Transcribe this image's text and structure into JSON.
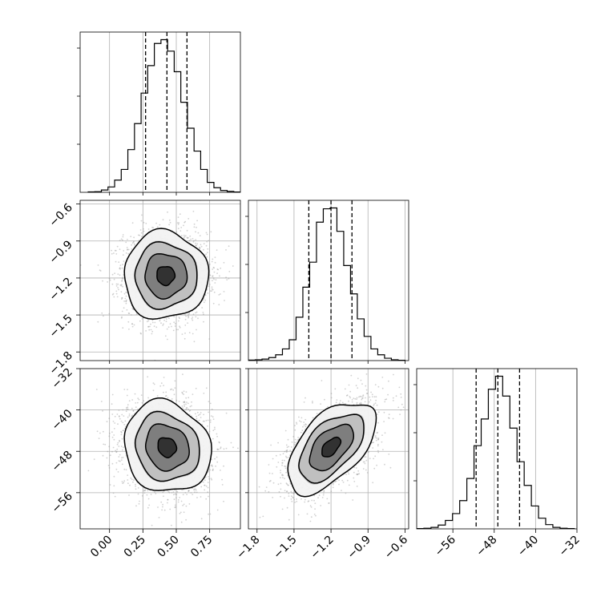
{
  "chart_data": {
    "type": "corner",
    "parameters": [
      "",
      "",
      ""
    ],
    "grid": true,
    "quantiles": [
      0.16,
      0.5,
      0.84
    ],
    "axes": [
      {
        "range": [
          -0.22,
          0.98
        ],
        "ticks": [
          "0.00",
          "0.25",
          "0.50",
          "0.75"
        ],
        "tick_values": [
          0.0,
          0.25,
          0.5,
          0.75
        ]
      },
      {
        "range": [
          -1.87,
          -0.57
        ],
        "ticks": [
          "−1.8",
          "−1.5",
          "−1.2",
          "−0.9",
          "−0.6"
        ],
        "tick_values": [
          -1.8,
          -1.5,
          -1.2,
          -0.9,
          -0.6
        ]
      },
      {
        "range": [
          -63,
          -32
        ],
        "ticks": [
          "−56",
          "−48",
          "−40",
          "−32"
        ],
        "tick_values": [
          -56,
          -48,
          -40,
          -32
        ]
      }
    ],
    "marginals": [
      {
        "param": 0,
        "hist_range": [
          -0.16,
          0.98
        ],
        "counts": [
          3,
          4,
          15,
          35,
          80,
          150,
          280,
          450,
          650,
          830,
          975,
          1000,
          925,
          790,
          590,
          420,
          270,
          150,
          65,
          30,
          12,
          6,
          2
        ],
        "quantile_values": [
          0.27,
          0.43,
          0.58
        ]
      },
      {
        "param": 1,
        "hist_range": [
          -1.87,
          -0.6
        ],
        "counts": [
          3,
          5,
          9,
          18,
          35,
          70,
          125,
          260,
          440,
          590,
          830,
          910,
          915,
          775,
          570,
          400,
          250,
          145,
          70,
          35,
          14,
          5,
          2
        ],
        "quantile_values": [
          -1.38,
          -1.2,
          -1.03
        ]
      },
      {
        "param": 2,
        "hist_range": [
          -63,
          -32.5
        ],
        "counts": [
          2,
          4,
          10,
          25,
          55,
          100,
          185,
          330,
          545,
          720,
          915,
          1000,
          870,
          660,
          440,
          285,
          150,
          70,
          28,
          10,
          4,
          2
        ],
        "quantile_values": [
          -51.5,
          -47.3,
          -43.1
        ]
      }
    ],
    "pairs": [
      {
        "x": 0,
        "y": 1,
        "center": [
          0.42,
          -1.18
        ],
        "sigma": [
          0.15,
          0.17
        ],
        "rho": 0.0
      },
      {
        "x": 0,
        "y": 2,
        "center": [
          0.43,
          -47.2
        ],
        "sigma": [
          0.155,
          4.2
        ],
        "rho": -0.12
      },
      {
        "x": 1,
        "y": 2,
        "center": [
          -1.2,
          -47.2
        ],
        "sigma": [
          0.17,
          4.2
        ],
        "rho": 0.55
      }
    ]
  }
}
